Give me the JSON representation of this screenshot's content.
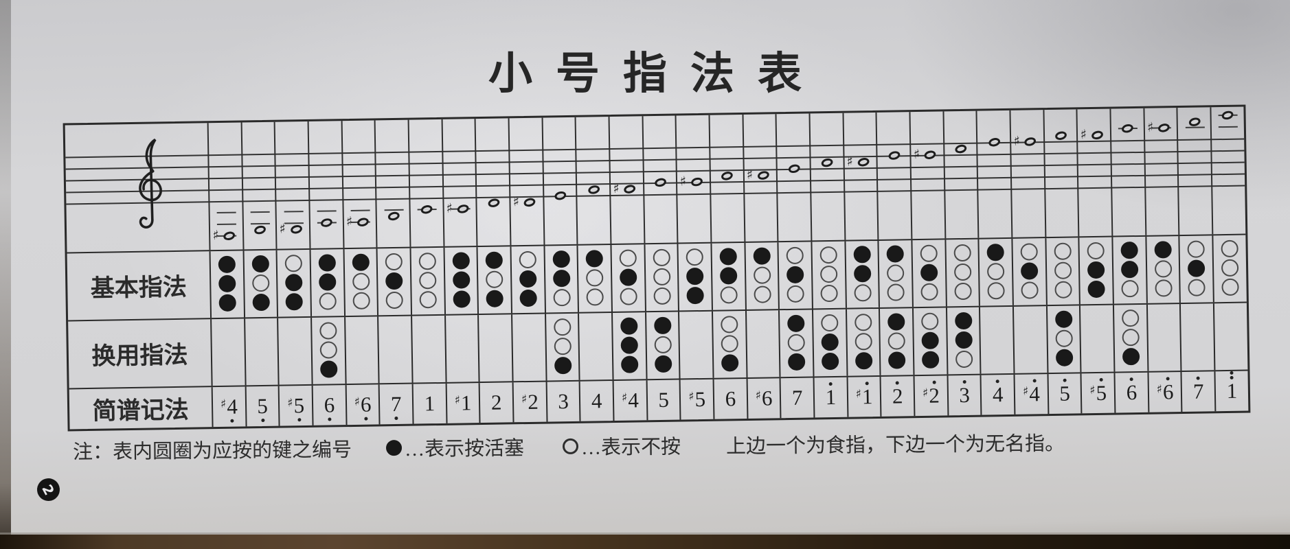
{
  "page": {
    "badge": "2"
  },
  "title": "小号指法表",
  "staff": {
    "clef": "treble",
    "lines": 5
  },
  "table": {
    "row_labels": [
      "基本指法",
      "换用指法",
      "简谱记法"
    ],
    "legend_note": "1=top circle (valve 1), 2=middle, 3=bottom; value 1=pressed(filled), 0=open",
    "columns": [
      {
        "jianpu": "#4",
        "sharp": true,
        "digit": "4",
        "octave": -1,
        "staff_step": -6,
        "basic": [
          1,
          1,
          1
        ],
        "alternate": null
      },
      {
        "jianpu": "5",
        "sharp": false,
        "digit": "5",
        "octave": -1,
        "staff_step": -5,
        "basic": [
          1,
          0,
          1
        ],
        "alternate": null
      },
      {
        "jianpu": "#5",
        "sharp": true,
        "digit": "5",
        "octave": -1,
        "staff_step": -5,
        "basic": [
          0,
          1,
          1
        ],
        "alternate": null
      },
      {
        "jianpu": "6",
        "sharp": false,
        "digit": "6",
        "octave": -1,
        "staff_step": -4,
        "basic": [
          1,
          1,
          0
        ],
        "alternate": [
          0,
          0,
          1
        ]
      },
      {
        "jianpu": "#6",
        "sharp": true,
        "digit": "6",
        "octave": -1,
        "staff_step": -4,
        "basic": [
          1,
          0,
          0
        ],
        "alternate": null
      },
      {
        "jianpu": "7",
        "sharp": false,
        "digit": "7",
        "octave": -1,
        "staff_step": -3,
        "basic": [
          0,
          1,
          0
        ],
        "alternate": null
      },
      {
        "jianpu": "1",
        "sharp": false,
        "digit": "1",
        "octave": 0,
        "staff_step": -2,
        "basic": [
          0,
          0,
          0
        ],
        "alternate": null
      },
      {
        "jianpu": "#1",
        "sharp": true,
        "digit": "1",
        "octave": 0,
        "staff_step": -2,
        "basic": [
          1,
          1,
          1
        ],
        "alternate": null
      },
      {
        "jianpu": "2",
        "sharp": false,
        "digit": "2",
        "octave": 0,
        "staff_step": -1,
        "basic": [
          1,
          0,
          1
        ],
        "alternate": null
      },
      {
        "jianpu": "#2",
        "sharp": true,
        "digit": "2",
        "octave": 0,
        "staff_step": -1,
        "basic": [
          0,
          1,
          1
        ],
        "alternate": null
      },
      {
        "jianpu": "3",
        "sharp": false,
        "digit": "3",
        "octave": 0,
        "staff_step": 0,
        "basic": [
          1,
          1,
          0
        ],
        "alternate": [
          0,
          0,
          1
        ]
      },
      {
        "jianpu": "4",
        "sharp": false,
        "digit": "4",
        "octave": 0,
        "staff_step": 1,
        "basic": [
          1,
          0,
          0
        ],
        "alternate": null
      },
      {
        "jianpu": "#4",
        "sharp": true,
        "digit": "4",
        "octave": 0,
        "staff_step": 1,
        "basic": [
          0,
          1,
          0
        ],
        "alternate": [
          1,
          1,
          1
        ]
      },
      {
        "jianpu": "5",
        "sharp": false,
        "digit": "5",
        "octave": 0,
        "staff_step": 2,
        "basic": [
          0,
          0,
          0
        ],
        "alternate": [
          1,
          0,
          1
        ]
      },
      {
        "jianpu": "#5",
        "sharp": true,
        "digit": "5",
        "octave": 0,
        "staff_step": 2,
        "basic": [
          0,
          1,
          1
        ],
        "alternate": null
      },
      {
        "jianpu": "6",
        "sharp": false,
        "digit": "6",
        "octave": 0,
        "staff_step": 3,
        "basic": [
          1,
          1,
          0
        ],
        "alternate": [
          0,
          0,
          1
        ]
      },
      {
        "jianpu": "#6",
        "sharp": true,
        "digit": "6",
        "octave": 0,
        "staff_step": 3,
        "basic": [
          1,
          0,
          0
        ],
        "alternate": null
      },
      {
        "jianpu": "7",
        "sharp": false,
        "digit": "7",
        "octave": 0,
        "staff_step": 4,
        "basic": [
          0,
          1,
          0
        ],
        "alternate": [
          1,
          0,
          1
        ]
      },
      {
        "jianpu": "1̇",
        "sharp": false,
        "digit": "1",
        "octave": 1,
        "staff_step": 5,
        "basic": [
          0,
          0,
          0
        ],
        "alternate": [
          0,
          1,
          1
        ]
      },
      {
        "jianpu": "#1̇",
        "sharp": true,
        "digit": "1",
        "octave": 1,
        "staff_step": 5,
        "basic": [
          1,
          1,
          0
        ],
        "alternate": [
          0,
          0,
          1
        ]
      },
      {
        "jianpu": "2̇",
        "sharp": false,
        "digit": "2",
        "octave": 1,
        "staff_step": 6,
        "basic": [
          1,
          0,
          0
        ],
        "alternate": [
          1,
          0,
          1
        ]
      },
      {
        "jianpu": "#2̇",
        "sharp": true,
        "digit": "2",
        "octave": 1,
        "staff_step": 6,
        "basic": [
          0,
          1,
          0
        ],
        "alternate": [
          0,
          1,
          1
        ]
      },
      {
        "jianpu": "3̇",
        "sharp": false,
        "digit": "3",
        "octave": 1,
        "staff_step": 7,
        "basic": [
          0,
          0,
          0
        ],
        "alternate": [
          1,
          1,
          0
        ]
      },
      {
        "jianpu": "4̇",
        "sharp": false,
        "digit": "4",
        "octave": 1,
        "staff_step": 8,
        "basic": [
          1,
          0,
          0
        ],
        "alternate": null
      },
      {
        "jianpu": "#4̇",
        "sharp": true,
        "digit": "4",
        "octave": 1,
        "staff_step": 8,
        "basic": [
          0,
          1,
          0
        ],
        "alternate": null
      },
      {
        "jianpu": "5̇",
        "sharp": false,
        "digit": "5",
        "octave": 1,
        "staff_step": 9,
        "basic": [
          0,
          0,
          0
        ],
        "alternate": [
          1,
          0,
          1
        ]
      },
      {
        "jianpu": "#5̇",
        "sharp": true,
        "digit": "5",
        "octave": 1,
        "staff_step": 9,
        "basic": [
          0,
          1,
          1
        ],
        "alternate": null
      },
      {
        "jianpu": "6̇",
        "sharp": false,
        "digit": "6",
        "octave": 1,
        "staff_step": 10,
        "basic": [
          1,
          1,
          0
        ],
        "alternate": [
          0,
          0,
          1
        ]
      },
      {
        "jianpu": "#6̇",
        "sharp": true,
        "digit": "6",
        "octave": 1,
        "staff_step": 10,
        "basic": [
          1,
          0,
          0
        ],
        "alternate": null
      },
      {
        "jianpu": "7̇",
        "sharp": false,
        "digit": "7",
        "octave": 1,
        "staff_step": 11,
        "basic": [
          0,
          1,
          0
        ],
        "alternate": null
      },
      {
        "jianpu": "1̈",
        "sharp": false,
        "digit": "1",
        "octave": 2,
        "staff_step": 12,
        "basic": [
          0,
          0,
          0
        ],
        "alternate": null
      }
    ]
  },
  "footnote": {
    "prefix": "注：表内圆圈为应按的键之编号",
    "filled_symbol": "●",
    "filled_legend": "…表示按活塞",
    "open_symbol": "○",
    "open_legend": "…表示不按",
    "finger_note": "上边一个为食指，下边一个为无名指。"
  },
  "colors": {
    "paper": "#d4d4d6",
    "ink": "#232323",
    "wood_edge": "#47341f"
  }
}
